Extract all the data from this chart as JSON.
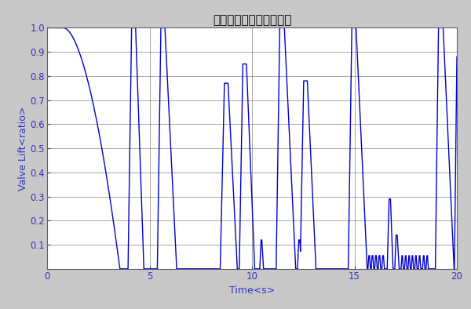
{
  "title": "逆止弁開度の時刻歴結果",
  "xlabel": "Time<s>",
  "ylabel": "Valve Lift<ratio>",
  "xlim": [
    0,
    20
  ],
  "ylim": [
    0,
    1
  ],
  "xticks": [
    0,
    5,
    10,
    15,
    20
  ],
  "yticks": [
    0.1,
    0.2,
    0.3,
    0.4,
    0.5,
    0.6,
    0.7,
    0.8,
    0.9,
    1.0
  ],
  "line_color": "#0000cc",
  "plot_bg_color": "#ffffff",
  "fig_bg_color": "#d4d4d4",
  "outer_bg_color": "#c8c8c8",
  "grid_color": "#505050",
  "title_fontsize": 11,
  "label_fontsize": 9,
  "tick_color": "#3333cc"
}
